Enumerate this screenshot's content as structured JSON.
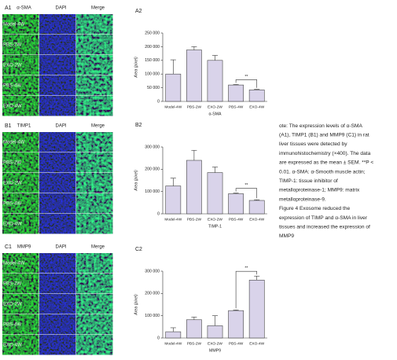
{
  "image_panels": [
    {
      "label": "A1",
      "columns": [
        "α-SMA",
        "DAPI",
        "Merge"
      ],
      "rows": [
        "Model-4W",
        "PBS-2W",
        "EXO-2W",
        "PBS-4W",
        "EXO-4W"
      ]
    },
    {
      "label": "B1",
      "columns": [
        "TIMP1",
        "DAPI",
        "Merge"
      ],
      "rows": [
        "Model-4W",
        "PBS-2W",
        "EXO-2W",
        "PBS-4W",
        "EXO-4W"
      ]
    },
    {
      "label": "C1",
      "columns": [
        "MMP9",
        "DAPI",
        "Merge"
      ],
      "rows": [
        "Model-4W",
        "PBS-2W",
        "EXO-2W",
        "PBS-4W",
        "EXO-4W"
      ]
    }
  ],
  "chart_data": [
    {
      "type": "bar",
      "panel_label": "A2",
      "x_label": "α-SMA",
      "y_label": "Area (pixel)",
      "categories": [
        "Model-4W",
        "PBS-2W",
        "EXO-2W",
        "PBS-4W",
        "EXO-4W"
      ],
      "values": [
        100000,
        188000,
        150000,
        60000,
        42000
      ],
      "errors": [
        52000,
        12000,
        18000,
        2000,
        2000
      ],
      "color": "#d9d3ea",
      "ylim": [
        0,
        250000
      ],
      "yticks": [
        0,
        {
          "value": 50000,
          "label": "50 000"
        },
        {
          "value": 100000,
          "label": "100 000"
        },
        {
          "value": 150000,
          "label": "150 000"
        },
        {
          "value": 200000,
          "label": "200 000"
        },
        {
          "value": 250000,
          "label": "250 000"
        }
      ],
      "annotation": "**"
    },
    {
      "type": "bar",
      "panel_label": "B2",
      "x_label": "TIMP-1",
      "y_label": "Area (pixel)",
      "categories": [
        "Model-4W",
        "PBS-2W",
        "EXO-2W",
        "PBS-4W",
        "EXO-4W"
      ],
      "values": [
        125000,
        240000,
        185000,
        90000,
        60000
      ],
      "errors": [
        35000,
        45000,
        25000,
        3000,
        3000
      ],
      "color": "#d9d3ea",
      "ylim": [
        0,
        300000
      ],
      "yticks": [
        0,
        {
          "value": 100000,
          "label": "100 000"
        },
        {
          "value": 200000,
          "label": "200 000"
        },
        {
          "value": 300000,
          "label": "300 000"
        }
      ],
      "annotation": "**"
    },
    {
      "type": "bar",
      "panel_label": "C2",
      "x_label": "MMP9",
      "y_label": "Area (pixel)",
      "categories": [
        "Model-4W",
        "PBS-2W",
        "EXO-2W",
        "PBS-4W",
        "EXO-4W"
      ],
      "values": [
        28000,
        82000,
        55000,
        123000,
        260000
      ],
      "errors": [
        18000,
        12000,
        45000,
        3000,
        18000
      ],
      "color": "#d9d3ea",
      "ylim": [
        0,
        300000
      ],
      "yticks": [
        0,
        {
          "value": 100000,
          "label": "100 000"
        },
        {
          "value": 200000,
          "label": "200 000"
        },
        {
          "value": 300000,
          "label": "300 000"
        }
      ],
      "annotation": "**"
    }
  ],
  "caption": {
    "lines": [
      "ote: The expression levels of α-SMA",
      "(A1), TIMP1 (B1) and MMP9 (C1) in rat",
      "liver tissues were detected by",
      "immunohistochemistry (×400). The data",
      "are expressed as the mean ± SEM. **P <",
      "0.01. α-SMA: α-Smooth muscle actin;",
      "TIMP-1: tissue inhibitor of",
      "metalloproteinase-1; MMP9: matrix",
      "metalloproteinase-9.",
      "Figure 4    Exosome reduced the",
      "expression of TIMP and α-SMA in liver",
      "tissues and increased the expression of",
      "MMP9"
    ]
  }
}
